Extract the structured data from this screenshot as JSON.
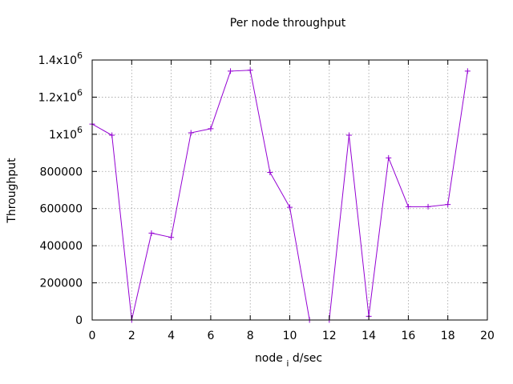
{
  "chart_data": {
    "type": "line",
    "title": "Per node throughput",
    "xlabel": "node_id/sec",
    "ylabel": "Throughput",
    "xlim": [
      0,
      20
    ],
    "ylim": [
      0,
      1400000
    ],
    "x_ticks": [
      0,
      2,
      4,
      6,
      8,
      10,
      12,
      14,
      16,
      18,
      20
    ],
    "y_ticks": [
      0,
      200000,
      400000,
      600000,
      800000,
      1000000,
      1200000,
      1400000
    ],
    "x_tick_labels": [
      "0",
      "2",
      "4",
      "6",
      "8",
      "10",
      "12",
      "14",
      "16",
      "18",
      "20"
    ],
    "y_tick_labels": [
      {
        "base": "0",
        "exp": ""
      },
      {
        "base": "200000",
        "exp": ""
      },
      {
        "base": "400000",
        "exp": ""
      },
      {
        "base": "600000",
        "exp": ""
      },
      {
        "base": "800000",
        "exp": ""
      },
      {
        "base": "1x10",
        "exp": "6"
      },
      {
        "base": "1.2x10",
        "exp": "6"
      },
      {
        "base": "1.4x10",
        "exp": "6"
      }
    ],
    "grid": true,
    "legend": "none",
    "series": [
      {
        "color": "#9400d3",
        "marker": "plus",
        "x": [
          0,
          1,
          2,
          3,
          4,
          5,
          6,
          7,
          8,
          9,
          10,
          11,
          12,
          13,
          14,
          15,
          16,
          17,
          18,
          19
        ],
        "values": [
          1055000,
          995000,
          0,
          468000,
          445000,
          1008000,
          1030000,
          1340000,
          1345000,
          795000,
          607000,
          0,
          0,
          995000,
          20000,
          873000,
          610000,
          610000,
          622000,
          1340000
        ]
      }
    ]
  }
}
